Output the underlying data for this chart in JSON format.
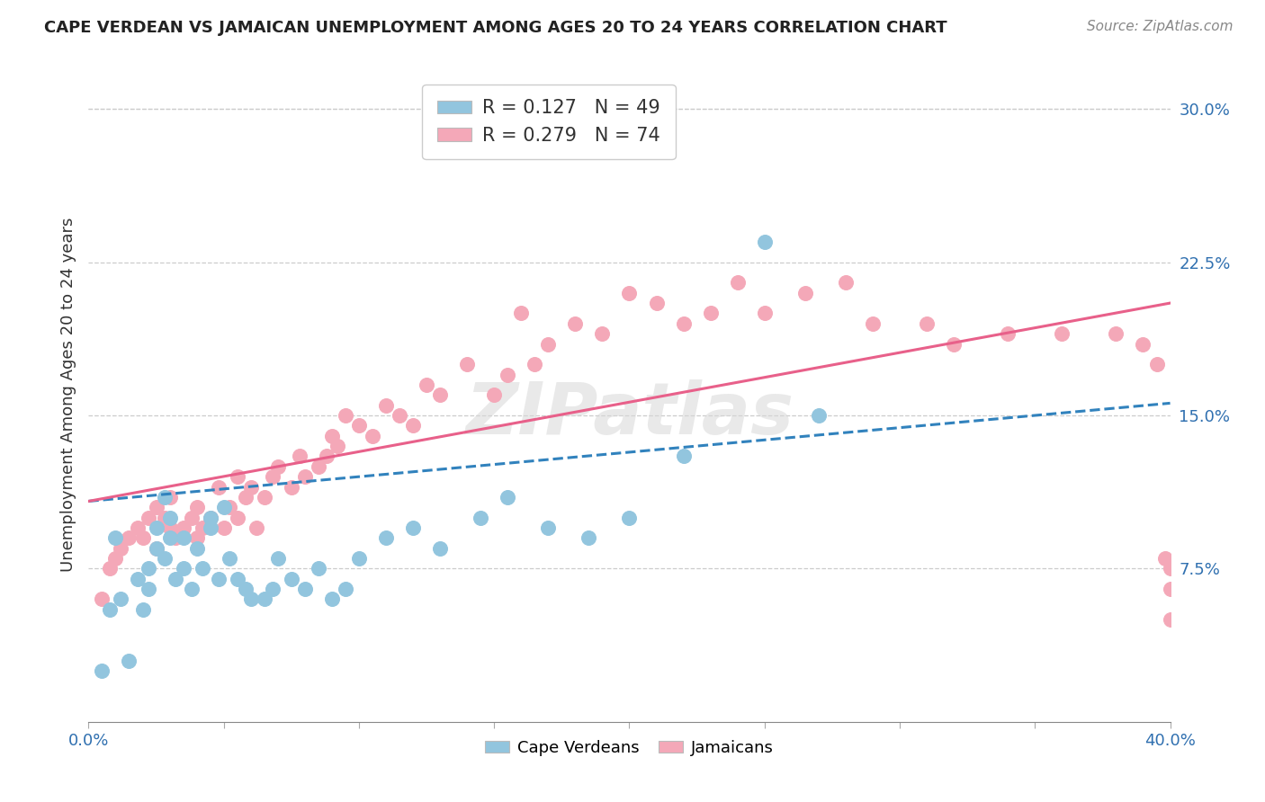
{
  "title": "CAPE VERDEAN VS JAMAICAN UNEMPLOYMENT AMONG AGES 20 TO 24 YEARS CORRELATION CHART",
  "source": "Source: ZipAtlas.com",
  "ylabel": "Unemployment Among Ages 20 to 24 years",
  "xlim": [
    0.0,
    0.4
  ],
  "ylim": [
    0.0,
    0.32
  ],
  "xticks": [
    0.0,
    0.05,
    0.1,
    0.15,
    0.2,
    0.25,
    0.3,
    0.35,
    0.4
  ],
  "xticklabels_show": [
    "0.0%",
    "40.0%"
  ],
  "yticks": [
    0.075,
    0.15,
    0.225,
    0.3
  ],
  "yticklabels": [
    "7.5%",
    "15.0%",
    "22.5%",
    "30.0%"
  ],
  "cv_R": "0.127",
  "cv_N": "49",
  "jam_R": "0.279",
  "jam_N": "74",
  "cv_color": "#92c5de",
  "jam_color": "#f4a8b8",
  "cv_line_color": "#3182bd",
  "jam_line_color": "#e8608a",
  "watermark": "ZIPatlas",
  "cv_scatter_x": [
    0.005,
    0.008,
    0.01,
    0.012,
    0.015,
    0.018,
    0.02,
    0.022,
    0.022,
    0.025,
    0.025,
    0.028,
    0.028,
    0.03,
    0.03,
    0.032,
    0.035,
    0.035,
    0.038,
    0.04,
    0.042,
    0.045,
    0.045,
    0.048,
    0.05,
    0.052,
    0.055,
    0.058,
    0.06,
    0.065,
    0.068,
    0.07,
    0.075,
    0.08,
    0.085,
    0.09,
    0.095,
    0.1,
    0.11,
    0.12,
    0.13,
    0.145,
    0.155,
    0.17,
    0.185,
    0.2,
    0.22,
    0.25,
    0.27
  ],
  "cv_scatter_y": [
    0.025,
    0.055,
    0.09,
    0.06,
    0.03,
    0.07,
    0.055,
    0.065,
    0.075,
    0.085,
    0.095,
    0.11,
    0.08,
    0.1,
    0.09,
    0.07,
    0.075,
    0.09,
    0.065,
    0.085,
    0.075,
    0.095,
    0.1,
    0.07,
    0.105,
    0.08,
    0.07,
    0.065,
    0.06,
    0.06,
    0.065,
    0.08,
    0.07,
    0.065,
    0.075,
    0.06,
    0.065,
    0.08,
    0.09,
    0.095,
    0.085,
    0.1,
    0.11,
    0.095,
    0.09,
    0.1,
    0.13,
    0.235,
    0.15
  ],
  "jam_scatter_x": [
    0.005,
    0.008,
    0.01,
    0.012,
    0.015,
    0.018,
    0.02,
    0.022,
    0.025,
    0.025,
    0.028,
    0.03,
    0.03,
    0.032,
    0.035,
    0.038,
    0.04,
    0.04,
    0.042,
    0.045,
    0.048,
    0.05,
    0.052,
    0.055,
    0.055,
    0.058,
    0.06,
    0.062,
    0.065,
    0.068,
    0.07,
    0.075,
    0.078,
    0.08,
    0.085,
    0.088,
    0.09,
    0.092,
    0.095,
    0.1,
    0.105,
    0.11,
    0.115,
    0.12,
    0.125,
    0.13,
    0.14,
    0.15,
    0.155,
    0.16,
    0.165,
    0.17,
    0.18,
    0.19,
    0.2,
    0.21,
    0.22,
    0.23,
    0.24,
    0.25,
    0.265,
    0.28,
    0.29,
    0.31,
    0.32,
    0.34,
    0.36,
    0.38,
    0.39,
    0.395,
    0.398,
    0.4,
    0.4,
    0.4
  ],
  "jam_scatter_y": [
    0.06,
    0.075,
    0.08,
    0.085,
    0.09,
    0.095,
    0.09,
    0.1,
    0.085,
    0.105,
    0.1,
    0.095,
    0.11,
    0.09,
    0.095,
    0.1,
    0.105,
    0.09,
    0.095,
    0.1,
    0.115,
    0.095,
    0.105,
    0.1,
    0.12,
    0.11,
    0.115,
    0.095,
    0.11,
    0.12,
    0.125,
    0.115,
    0.13,
    0.12,
    0.125,
    0.13,
    0.14,
    0.135,
    0.15,
    0.145,
    0.14,
    0.155,
    0.15,
    0.145,
    0.165,
    0.16,
    0.175,
    0.16,
    0.17,
    0.2,
    0.175,
    0.185,
    0.195,
    0.19,
    0.21,
    0.205,
    0.195,
    0.2,
    0.215,
    0.2,
    0.21,
    0.215,
    0.195,
    0.195,
    0.185,
    0.19,
    0.19,
    0.19,
    0.185,
    0.175,
    0.08,
    0.075,
    0.065,
    0.05
  ]
}
